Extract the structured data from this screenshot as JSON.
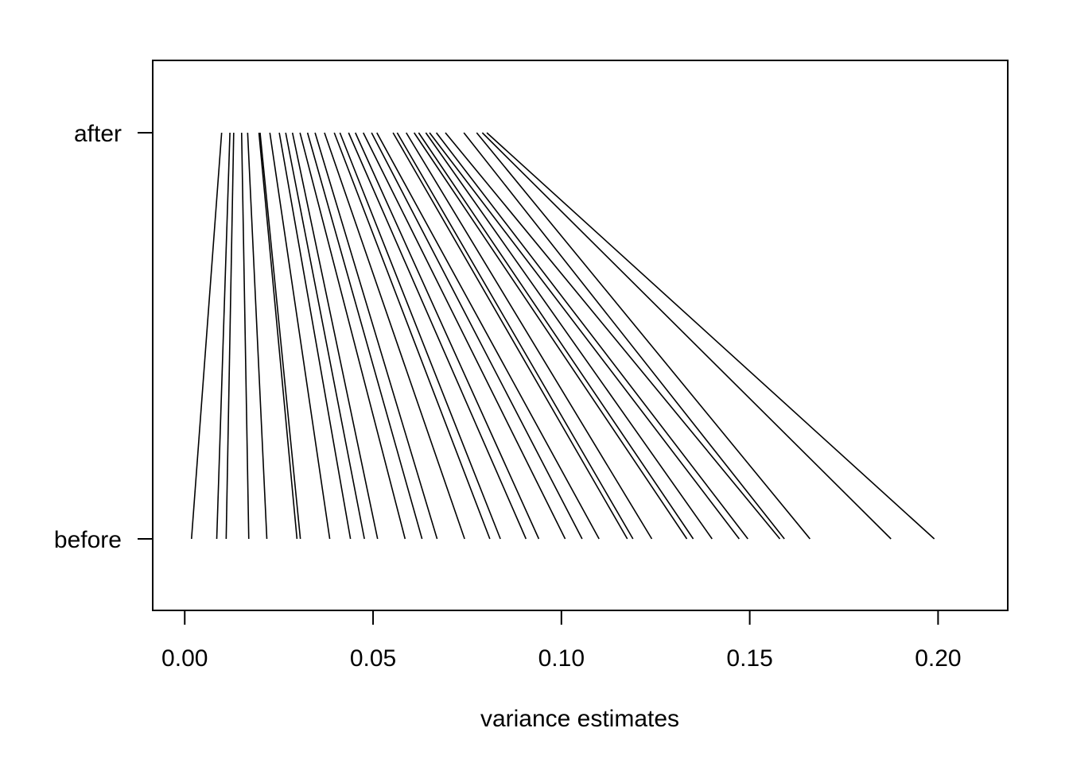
{
  "chart_data": {
    "type": "line",
    "xlabel": "variance estimates",
    "ylabel": "",
    "title": "",
    "xlim": [
      -0.0085,
      0.2185
    ],
    "xticks": [
      "0.00",
      "0.05",
      "0.10",
      "0.15",
      "0.20"
    ],
    "categories": [
      "before",
      "after"
    ],
    "grid": false,
    "series_style": "connecting segments (before → after)",
    "segments": [
      {
        "before": 0.0018,
        "after": 0.0098
      },
      {
        "before": 0.0085,
        "after": 0.012
      },
      {
        "before": 0.011,
        "after": 0.013
      },
      {
        "before": 0.017,
        "after": 0.0151
      },
      {
        "before": 0.0218,
        "after": 0.0167
      },
      {
        "before": 0.0298,
        "after": 0.0197
      },
      {
        "before": 0.0307,
        "after": 0.02
      },
      {
        "before": 0.0385,
        "after": 0.0226
      },
      {
        "before": 0.044,
        "after": 0.0251
      },
      {
        "before": 0.0477,
        "after": 0.0268
      },
      {
        "before": 0.0512,
        "after": 0.0286
      },
      {
        "before": 0.0585,
        "after": 0.0306
      },
      {
        "before": 0.063,
        "after": 0.0326
      },
      {
        "before": 0.067,
        "after": 0.0346
      },
      {
        "before": 0.0743,
        "after": 0.0371
      },
      {
        "before": 0.081,
        "after": 0.0397
      },
      {
        "before": 0.0838,
        "after": 0.0412
      },
      {
        "before": 0.0906,
        "after": 0.0435
      },
      {
        "before": 0.094,
        "after": 0.0453
      },
      {
        "before": 0.101,
        "after": 0.0474
      },
      {
        "before": 0.1055,
        "after": 0.0496
      },
      {
        "before": 0.11,
        "after": 0.051
      },
      {
        "before": 0.1175,
        "after": 0.0553
      },
      {
        "before": 0.119,
        "after": 0.0564
      },
      {
        "before": 0.124,
        "after": 0.0588
      },
      {
        "before": 0.1333,
        "after": 0.0609
      },
      {
        "before": 0.135,
        "after": 0.0621
      },
      {
        "before": 0.14,
        "after": 0.064
      },
      {
        "before": 0.1472,
        "after": 0.065
      },
      {
        "before": 0.1495,
        "after": 0.0668
      },
      {
        "before": 0.158,
        "after": 0.0692
      },
      {
        "before": 0.1592,
        "after": 0.0741
      },
      {
        "before": 0.166,
        "after": 0.0775
      },
      {
        "before": 0.1875,
        "after": 0.079
      },
      {
        "before": 0.199,
        "after": 0.0802
      }
    ]
  }
}
